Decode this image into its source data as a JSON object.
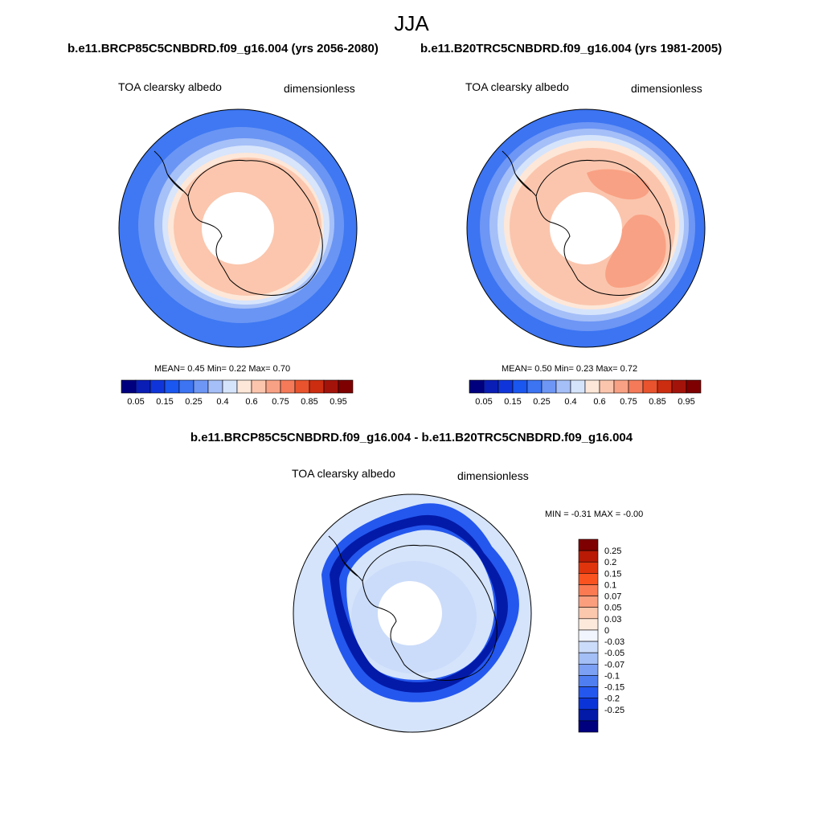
{
  "season": "JJA",
  "panel_left": {
    "case_title": "b.e11.BRCP85C5CNBDRD.f09_g16.004 (yrs 2056-2080)",
    "variable": "TOA clearsky albedo",
    "units": "dimensionless",
    "stats": "MEAN=   0.45  Min=   0.22  Max=   0.70"
  },
  "panel_right": {
    "case_title": "b.e11.B20TRC5CNBDRD.f09_g16.004 (yrs 1981-2005)",
    "variable": "TOA clearsky albedo",
    "units": "dimensionless",
    "stats": "MEAN=   0.50  Min=   0.23  Max=   0.72"
  },
  "panel_diff": {
    "case_title": "b.e11.BRCP85C5CNBDRD.f09_g16.004 - b.e11.B20TRC5CNBDRD.f09_g16.004",
    "variable": "TOA clearsky albedo",
    "units": "dimensionless",
    "stats": "MIN =  -0.31 MAX =  -0.00"
  },
  "chart_data": [
    {
      "type": "heatmap",
      "projection": "south-polar-stereographic",
      "title": "b.e11.BRCP85C5CNBDRD.f09_g16.004 (yrs 2056-2080)",
      "field": "TOA clearsky albedo",
      "units": "dimensionless",
      "mean": 0.45,
      "min": 0.22,
      "max": 0.7,
      "contour_levels": [
        0.05,
        0.1,
        0.15,
        0.2,
        0.25,
        0.3,
        0.4,
        0.5,
        0.6,
        0.7,
        0.75,
        0.8,
        0.85,
        0.9,
        0.95
      ],
      "colorbar_labels": [
        "0.05",
        "0.15",
        "0.25",
        "0.4",
        "0.6",
        "0.75",
        "0.85",
        "0.95"
      ],
      "colors": [
        "#00007f",
        "#0a1db5",
        "#0f35da",
        "#1a56f0",
        "#3c74f2",
        "#6d96f5",
        "#a5bff8",
        "#d6e4fb",
        "#fde7d8",
        "#fbc5ad",
        "#f9a184",
        "#f47a59",
        "#e9532d",
        "#cc2d10",
        "#a4130a",
        "#7f0000"
      ]
    },
    {
      "type": "heatmap",
      "projection": "south-polar-stereographic",
      "title": "b.e11.B20TRC5CNBDRD.f09_g16.004 (yrs 1981-2005)",
      "field": "TOA clearsky albedo",
      "units": "dimensionless",
      "mean": 0.5,
      "min": 0.23,
      "max": 0.72,
      "contour_levels": [
        0.05,
        0.1,
        0.15,
        0.2,
        0.25,
        0.3,
        0.4,
        0.5,
        0.6,
        0.7,
        0.75,
        0.8,
        0.85,
        0.9,
        0.95
      ],
      "colorbar_labels": [
        "0.05",
        "0.15",
        "0.25",
        "0.4",
        "0.6",
        "0.75",
        "0.85",
        "0.95"
      ],
      "colors": [
        "#00007f",
        "#0a1db5",
        "#0f35da",
        "#1a56f0",
        "#3c74f2",
        "#6d96f5",
        "#a5bff8",
        "#d6e4fb",
        "#fde7d8",
        "#fbc5ad",
        "#f9a184",
        "#f47a59",
        "#e9532d",
        "#cc2d10",
        "#a4130a",
        "#7f0000"
      ]
    },
    {
      "type": "heatmap",
      "projection": "south-polar-stereographic",
      "title": "b.e11.BRCP85C5CNBDRD.f09_g16.004 - b.e11.B20TRC5CNBDRD.f09_g16.004",
      "field": "TOA clearsky albedo",
      "units": "dimensionless",
      "min": -0.31,
      "max": -0.0,
      "colorbar_labels": [
        "0.25",
        "0.2",
        "0.15",
        "0.1",
        "0.07",
        "0.05",
        "0.03",
        "0",
        "-0.03",
        "-0.05",
        "-0.07",
        "-0.1",
        "-0.15",
        "-0.2",
        "-0.25"
      ],
      "colors": [
        "#7f0000",
        "#b81a05",
        "#e0340d",
        "#fb5320",
        "#fb7a52",
        "#fa9e7e",
        "#fbc7ad",
        "#fde9dc",
        "#f1f5fd",
        "#cbdcfa",
        "#a3bff6",
        "#7ca0f3",
        "#4f7ef0",
        "#2457ee",
        "#0b34d8",
        "#031aa8",
        "#00007f"
      ]
    }
  ]
}
